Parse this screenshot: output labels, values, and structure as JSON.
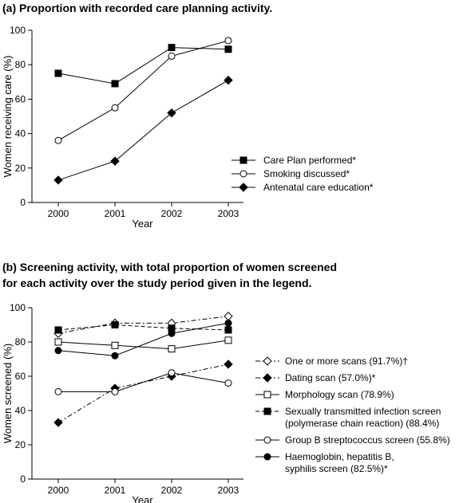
{
  "chart_data": [
    {
      "type": "line",
      "title": "(a) Proportion with recorded care planning activity.",
      "xlabel": "Year",
      "ylabel": "Women receiving care (%)",
      "ylim": [
        0,
        100
      ],
      "yticks": [
        "0",
        "20",
        "40",
        "60",
        "80",
        "100"
      ],
      "categories": [
        "2000",
        "2001",
        "2002",
        "2003"
      ],
      "legend_position": "bottom-right",
      "grid": false,
      "series": [
        {
          "name": "Care Plan performed*",
          "values": [
            75,
            69,
            90,
            89
          ],
          "marker": "square-filled",
          "line": "solid"
        },
        {
          "name": "Smoking discussed*",
          "values": [
            36,
            55,
            85,
            94
          ],
          "marker": "circle-open",
          "line": "solid"
        },
        {
          "name": "Antenatal care education*",
          "values": [
            13,
            24,
            52,
            71
          ],
          "marker": "diamond-filled",
          "line": "solid"
        }
      ]
    },
    {
      "type": "line",
      "title": "(b) Screening activity, with total proportion of women screened",
      "title_line2": "for each activity over the study period given in the legend.",
      "xlabel": "Year",
      "ylabel": "Women screened (%)",
      "ylim": [
        0,
        100
      ],
      "yticks": [
        "0",
        "20",
        "40",
        "60",
        "80",
        "100"
      ],
      "categories": [
        "2000",
        "2001",
        "2002",
        "2003"
      ],
      "legend_position": "right",
      "grid": false,
      "series": [
        {
          "name": "One or more scans (91.7%)†",
          "values": [
            85,
            91,
            91,
            95
          ],
          "marker": "diamond-open",
          "line": "dashdot"
        },
        {
          "name": "Dating scan (57.0%)*",
          "values": [
            33,
            53,
            60,
            67
          ],
          "marker": "diamond-filled",
          "line": "dashdot"
        },
        {
          "name": "Morphology scan (78.9%)",
          "values": [
            80,
            78,
            76,
            81
          ],
          "marker": "square-open",
          "line": "solid"
        },
        {
          "name": "Sexually transmitted infection screen",
          "name_line2": "(polymerase chain reaction) (88.4%)",
          "values": [
            87,
            90,
            88,
            87
          ],
          "marker": "square-filled",
          "line": "dashed"
        },
        {
          "name": "Group B streptococcus screen (55.8%)",
          "values": [
            51,
            51,
            62,
            56
          ],
          "marker": "circle-open",
          "line": "solid"
        },
        {
          "name": "Haemoglobin, hepatitis B,",
          "name_line2": "syphilis screen (82.5%)*",
          "values": [
            75,
            72,
            85,
            91
          ],
          "marker": "circle-filled",
          "line": "solid"
        }
      ]
    }
  ]
}
